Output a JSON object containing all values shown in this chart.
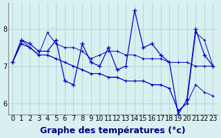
{
  "background_color": "#d8f0f0",
  "grid_color": "#b0d8d8",
  "line_color": "#0000cc",
  "xlabel": "Graphe des températures (°c)",
  "xlabel_fontsize": 9,
  "tick_fontsize": 7,
  "ylim": [
    5.7,
    8.7
  ],
  "xlim": [
    -0.5,
    23.5
  ],
  "yticks": [
    6,
    7,
    8
  ],
  "xtick_labels": [
    "0",
    "1",
    "2",
    "3",
    "4",
    "5",
    "6",
    "7",
    "8",
    "9",
    "10",
    "11",
    "12",
    "13",
    "14",
    "15",
    "16",
    "17",
    "18",
    "19",
    "20",
    "21",
    "22",
    "23"
  ],
  "series": [
    [
      7.1,
      7.7,
      7.6,
      7.4,
      7.4,
      7.7,
      6.6,
      6.5,
      7.6,
      7.1,
      7.0,
      7.5,
      6.9,
      7.0,
      8.5,
      7.5,
      7.6,
      7.3,
      7.1,
      5.7,
      6.1,
      8.0,
      7.3,
      7.0
    ],
    [
      7.1,
      7.7,
      7.5,
      7.3,
      7.9,
      7.6,
      7.5,
      7.5,
      7.4,
      7.2,
      7.3,
      7.4,
      7.4,
      7.3,
      7.3,
      7.2,
      7.2,
      7.2,
      7.1,
      7.1,
      7.1,
      7.0,
      7.0,
      7.0
    ],
    [
      7.1,
      7.6,
      7.5,
      7.3,
      7.3,
      7.2,
      7.1,
      7.0,
      6.9,
      6.8,
      6.8,
      6.7,
      6.7,
      6.6,
      6.6,
      6.6,
      6.5,
      6.5,
      6.4,
      5.8,
      6.0,
      6.5,
      6.3,
      6.2
    ],
    [
      7.1,
      7.6,
      7.5,
      7.3,
      7.3,
      7.2,
      7.1,
      7.0,
      6.9,
      6.8,
      6.8,
      6.7,
      6.7,
      6.6,
      6.6,
      6.6,
      6.5,
      6.5,
      6.4,
      5.8,
      6.0,
      7.9,
      7.7,
      7.0
    ]
  ]
}
